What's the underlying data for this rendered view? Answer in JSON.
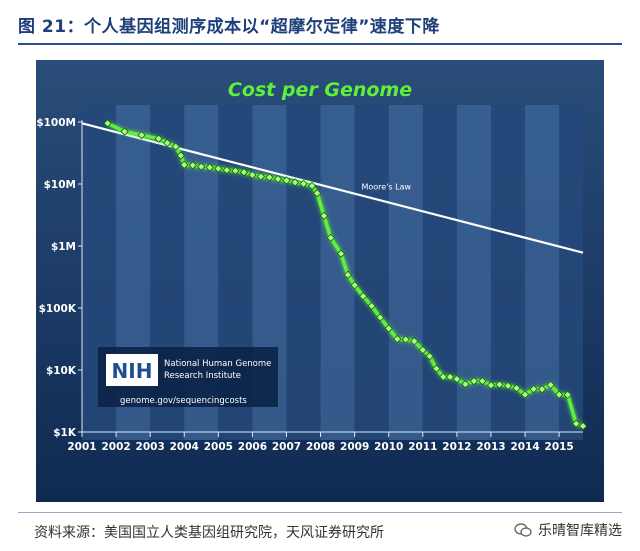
{
  "figure": {
    "title": "图 21：个人基因组测序成本以“超摩尔定律”速度下降",
    "source": "资料来源：美国国立人类基因组研究院，天风证券研究所",
    "brand": "乐晴智库精选"
  },
  "nih_box": {
    "logo": "NIH",
    "org_line1": "National Human Genome",
    "org_line2": "Research Institute",
    "url": "genome.gov/sequencingcosts"
  },
  "colors": {
    "background_top": "#2a4d7a",
    "background_bottom": "#0f2a52",
    "cost_line": "#5ef03a",
    "marker_fill": "#a6ff7a",
    "moore_line": "#ffffff",
    "title_text": "#5ef03a"
  },
  "chart_data": {
    "type": "line",
    "title": "Cost per Genome",
    "y_scale": "log",
    "ylim": [
      1000,
      100000000
    ],
    "yticks": [
      {
        "value": 100000000,
        "label": "$100M"
      },
      {
        "value": 10000000,
        "label": "$10M"
      },
      {
        "value": 1000000,
        "label": "$1M"
      },
      {
        "value": 100000,
        "label": "$100K"
      },
      {
        "value": 10000,
        "label": "$10K"
      },
      {
        "value": 1000,
        "label": "$1K"
      }
    ],
    "xlim": [
      2001,
      2015.7
    ],
    "xticks": [
      "2001",
      "2002",
      "2003",
      "2004",
      "2005",
      "2006",
      "2007",
      "2008",
      "2009",
      "2010",
      "2011",
      "2012",
      "2013",
      "2014",
      "2015"
    ],
    "grid": false,
    "series": [
      {
        "name": "Moore's Law",
        "points": [
          [
            2001,
            95263072
          ],
          [
            2015.7,
            780000
          ]
        ]
      },
      {
        "name": "",
        "points": [
          [
            2001.75,
            95263072
          ],
          [
            2002.25,
            70175437
          ],
          [
            2002.75,
            61448422
          ],
          [
            2003.25,
            53751684
          ],
          [
            2003.5,
            46000000
          ],
          [
            2003.75,
            40157554
          ],
          [
            2003.9,
            28780376
          ],
          [
            2004.0,
            20442576
          ],
          [
            2004.25,
            20000000
          ],
          [
            2004.5,
            19000000
          ],
          [
            2004.75,
            18519312
          ],
          [
            2005.0,
            17760000
          ],
          [
            2005.25,
            16800000
          ],
          [
            2005.5,
            16300000
          ],
          [
            2005.75,
            15500000
          ],
          [
            2006.0,
            14000000
          ],
          [
            2006.25,
            13200000
          ],
          [
            2006.5,
            12800000
          ],
          [
            2006.75,
            12000000
          ],
          [
            2007.0,
            11400000
          ],
          [
            2007.25,
            10600000
          ],
          [
            2007.5,
            10100000
          ],
          [
            2007.75,
            9300000
          ],
          [
            2007.9,
            7100000
          ],
          [
            2008.1,
            3063000
          ],
          [
            2008.3,
            1352982
          ],
          [
            2008.6,
            752080
          ],
          [
            2008.8,
            342502
          ],
          [
            2009.0,
            232735
          ],
          [
            2009.25,
            154714
          ],
          [
            2009.5,
            108065
          ],
          [
            2009.75,
            70333
          ],
          [
            2010.0,
            46774
          ],
          [
            2010.25,
            31512
          ],
          [
            2010.5,
            31125
          ],
          [
            2010.75,
            29092
          ],
          [
            2011.0,
            20963
          ],
          [
            2011.2,
            16712
          ],
          [
            2011.4,
            10497
          ],
          [
            2011.6,
            7743
          ],
          [
            2011.8,
            7743
          ],
          [
            2012.0,
            7147
          ],
          [
            2012.25,
            5901
          ],
          [
            2012.5,
            6618
          ],
          [
            2012.75,
            6618
          ],
          [
            2013.0,
            5671
          ],
          [
            2013.25,
            5826
          ],
          [
            2013.5,
            5550
          ],
          [
            2013.75,
            5096
          ],
          [
            2014.0,
            4008
          ],
          [
            2014.25,
            4920
          ],
          [
            2014.5,
            4905
          ],
          [
            2014.75,
            5731
          ],
          [
            2015.0,
            4000
          ],
          [
            2015.25,
            3970
          ],
          [
            2015.5,
            1363
          ],
          [
            2015.7,
            1245
          ]
        ]
      }
    ],
    "annotations": [
      {
        "text": "Moore's Law"
      }
    ]
  }
}
